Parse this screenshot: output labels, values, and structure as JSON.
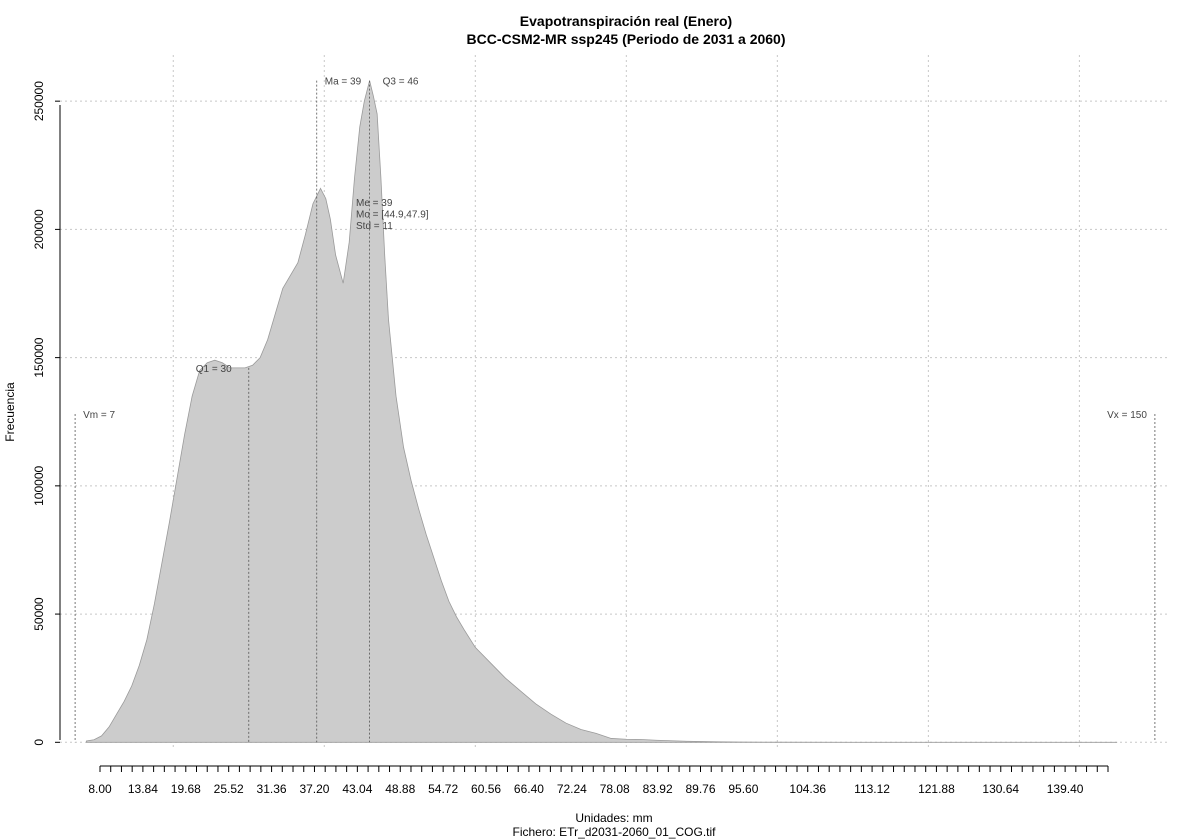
{
  "chart_data": {
    "type": "area",
    "title": "Evapotranspiración real (Enero)",
    "subtitle": "BCC-CSM2-MR ssp245 (Periodo de 2031 a 2060)",
    "xlabel": "Unidades: mm",
    "footer": "Fichero: ETr_d2031-2060_01_COG.tif",
    "ylabel": "Frecuencia",
    "xlim": [
      5,
      152
    ],
    "ylim": [
      -3000,
      268000
    ],
    "x_ticks": [
      8.0,
      13.84,
      19.68,
      25.52,
      31.36,
      37.2,
      43.04,
      48.88,
      54.72,
      60.56,
      66.4,
      72.24,
      78.08,
      83.92,
      89.76,
      95.6,
      104.36,
      113.12,
      121.88,
      130.64,
      139.4
    ],
    "x_tick_labels": [
      "8.00",
      "13.84",
      "19.68",
      "25.52",
      "31.36",
      "37.20",
      "43.04",
      "48.88",
      "54.72",
      "60.56",
      "66.40",
      "72.24",
      "78.08",
      "83.92",
      "89.76",
      "95.60",
      "104.36",
      "113.12",
      "121.88",
      "130.64",
      "139.40"
    ],
    "x_minor_ticks": [
      8.0,
      9.46,
      10.92,
      12.38,
      13.84,
      15.3,
      16.76,
      18.22,
      19.68,
      21.14,
      22.6,
      24.06,
      25.52,
      26.98,
      28.44,
      29.9,
      31.36,
      32.82,
      34.28,
      35.74,
      37.2,
      38.66,
      40.12,
      41.58,
      43.04,
      44.5,
      45.96,
      47.42,
      48.88,
      50.34,
      51.8,
      53.26,
      54.72,
      56.18,
      57.64,
      59.1,
      60.56,
      62.02,
      63.48,
      64.94,
      66.4,
      67.86,
      69.32,
      70.78,
      72.24,
      73.7,
      75.16,
      76.62,
      78.08,
      79.54,
      81.0,
      82.46,
      83.92,
      85.38,
      86.84,
      88.3,
      89.76,
      91.22,
      92.68,
      94.14,
      95.6,
      97.06,
      98.52,
      99.98,
      101.44,
      102.9,
      104.36,
      105.82,
      107.28,
      108.74,
      110.2,
      111.66,
      113.12,
      114.58,
      116.04,
      117.5,
      118.96,
      120.42,
      121.88,
      123.34,
      124.8,
      126.26,
      127.72,
      129.18,
      130.64,
      132.1,
      133.56,
      135.02,
      136.48,
      137.94,
      139.4,
      140.86,
      142.32,
      143.78,
      145.24
    ],
    "y_ticks": [
      0,
      50000,
      100000,
      150000,
      200000,
      250000
    ],
    "y_tick_labels": [
      "0",
      "50000",
      "100000",
      "150000",
      "200000",
      "250000"
    ],
    "x_grid": [
      20,
      40,
      60,
      80,
      100,
      120,
      140
    ],
    "grid": true,
    "fill_color": "#cccccc",
    "outline_color": "#9a9a9a",
    "density_x": [
      8.5,
      9.5,
      10.5,
      11.5,
      12.5,
      13.5,
      14.5,
      15.5,
      16.5,
      17.5,
      18.5,
      19.5,
      20.5,
      21.5,
      22.5,
      23.5,
      24.5,
      25.5,
      26.5,
      27.5,
      28.5,
      29.5,
      30.5,
      31.5,
      32.5,
      33.5,
      34.5,
      35.5,
      36.5,
      37.5,
      38.5,
      39.5,
      40.2,
      40.8,
      41.5,
      42.5,
      43.3,
      44,
      44.7,
      45.3,
      46,
      46.5,
      47,
      47.5,
      48,
      48.5,
      49.5,
      50.5,
      51.5,
      52.5,
      53.5,
      54.5,
      55.5,
      56.5,
      57.5,
      58.5,
      60,
      62,
      64,
      66,
      68,
      70,
      72,
      74,
      76,
      78,
      80,
      82,
      84,
      86,
      88,
      90,
      92,
      95,
      100,
      110,
      120,
      130,
      140,
      145
    ],
    "density_y": [
      500,
      1000,
      2500,
      6000,
      11000,
      16000,
      22000,
      30000,
      40000,
      54000,
      70000,
      86000,
      103000,
      120000,
      135000,
      145000,
      148000,
      149000,
      148000,
      146000,
      146000,
      146000,
      147000,
      150000,
      157000,
      167000,
      177000,
      182000,
      187000,
      198000,
      210000,
      216000,
      212000,
      204000,
      190000,
      179000,
      195000,
      220000,
      240000,
      250000,
      258000,
      252000,
      245000,
      220000,
      190000,
      165000,
      135000,
      115000,
      102000,
      91000,
      81000,
      72000,
      63000,
      55000,
      49000,
      44000,
      37000,
      31000,
      25000,
      20000,
      15000,
      11000,
      7500,
      5000,
      3500,
      1500,
      1200,
      1100,
      800,
      600,
      400,
      300,
      200,
      100,
      60,
      30,
      20,
      10,
      5,
      0
    ],
    "annotations": [
      {
        "label": "Vm = 7",
        "x": 7
      },
      {
        "label": "Q1 = 30",
        "x": 30
      },
      {
        "label": "Ma = 39",
        "x": 39
      },
      {
        "label": "Q3 = 46",
        "x": 46
      },
      {
        "label": "Vx = 150",
        "x": 150
      }
    ],
    "stats": [
      "Me = 39",
      "Mo = [44.9,47.9]",
      "Std = 11"
    ]
  }
}
